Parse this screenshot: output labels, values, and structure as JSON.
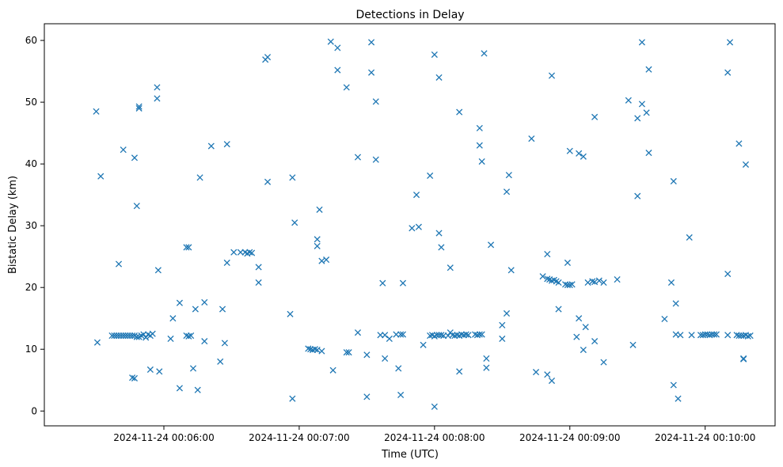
{
  "chart_data": {
    "type": "scatter",
    "title": "Detections in Delay",
    "xlabel": "Time (UTC)",
    "ylabel": "Bistatic Delay (km)",
    "x_unit": "seconds after 2024-11-24 00:05:00",
    "x_ticks": [
      {
        "label": "2024-11-24 00:06:00",
        "value": 60
      },
      {
        "label": "2024-11-24 00:07:00",
        "value": 120
      },
      {
        "label": "2024-11-24 00:08:00",
        "value": 180
      },
      {
        "label": "2024-11-24 00:09:00",
        "value": 240
      },
      {
        "label": "2024-11-24 00:10:00",
        "value": 300
      }
    ],
    "y_ticks": [
      0,
      10,
      20,
      30,
      40,
      50,
      60
    ],
    "xlim": [
      7,
      331
    ],
    "ylim": [
      -2.4,
      62.7
    ],
    "marker": "x",
    "color": "#1f77b4",
    "grid": false,
    "points": [
      [
        30,
        48.5
      ],
      [
        30.5,
        11.1
      ],
      [
        32,
        38
      ],
      [
        40,
        23.8
      ],
      [
        42,
        42.3
      ],
      [
        37,
        12.2
      ],
      [
        38,
        12.2
      ],
      [
        39,
        12.2
      ],
      [
        40,
        12.2
      ],
      [
        41,
        12.2
      ],
      [
        42,
        12.2
      ],
      [
        43,
        12.2
      ],
      [
        44,
        12.2
      ],
      [
        45,
        12.2
      ],
      [
        46,
        12.2
      ],
      [
        47,
        12.2
      ],
      [
        48,
        12.0
      ],
      [
        49,
        12.0
      ],
      [
        50,
        12.2
      ],
      [
        51,
        12.4
      ],
      [
        52,
        11.9
      ],
      [
        53,
        12.4
      ],
      [
        54,
        12.2
      ],
      [
        55,
        12.5
      ],
      [
        46,
        5.4
      ],
      [
        47,
        5.3
      ],
      [
        47,
        41
      ],
      [
        48,
        33.2
      ],
      [
        49,
        49
      ],
      [
        49,
        49.3
      ],
      [
        54,
        6.7
      ],
      [
        57,
        52.4
      ],
      [
        57,
        50.6
      ],
      [
        57.5,
        22.8
      ],
      [
        58,
        6.4
      ],
      [
        64,
        15
      ],
      [
        63,
        11.7
      ],
      [
        67,
        3.7
      ],
      [
        67,
        17.5
      ],
      [
        70,
        26.5
      ],
      [
        71,
        26.5
      ],
      [
        70,
        12.2
      ],
      [
        71,
        12.1
      ],
      [
        72,
        12.2
      ],
      [
        73,
        6.9
      ],
      [
        74,
        16.5
      ],
      [
        75,
        3.4
      ],
      [
        76,
        37.8
      ],
      [
        78,
        17.6
      ],
      [
        78,
        11.3
      ],
      [
        81,
        42.9
      ],
      [
        85,
        8
      ],
      [
        86,
        16.5
      ],
      [
        87,
        11
      ],
      [
        88,
        24
      ],
      [
        88,
        43.2
      ],
      [
        91,
        25.7
      ],
      [
        94,
        25.7
      ],
      [
        96,
        25.7
      ],
      [
        97,
        25.5
      ],
      [
        98,
        25.7
      ],
      [
        99,
        25.6
      ],
      [
        102,
        23.3
      ],
      [
        102,
        20.8
      ],
      [
        105,
        56.9
      ],
      [
        106,
        57.3
      ],
      [
        106,
        37.1
      ],
      [
        116,
        15.7
      ],
      [
        117,
        37.8
      ],
      [
        117,
        2
      ],
      [
        118,
        30.5
      ],
      [
        124,
        10.1
      ],
      [
        125,
        10.0
      ],
      [
        126,
        9.9
      ],
      [
        127,
        10
      ],
      [
        128,
        9.9
      ],
      [
        130,
        9.7
      ],
      [
        128,
        27.8
      ],
      [
        128,
        26.7
      ],
      [
        129,
        32.6
      ],
      [
        130,
        24.3
      ],
      [
        132,
        24.5
      ],
      [
        134,
        59.8
      ],
      [
        135,
        6.6
      ],
      [
        137,
        58.8
      ],
      [
        137,
        55.2
      ],
      [
        141,
        52.4
      ],
      [
        141,
        9.5
      ],
      [
        142,
        9.5
      ],
      [
        146,
        41.1
      ],
      [
        146,
        12.7
      ],
      [
        150,
        2.3
      ],
      [
        150,
        9.1
      ],
      [
        152,
        54.8
      ],
      [
        152,
        59.7
      ],
      [
        154,
        50.1
      ],
      [
        154,
        40.7
      ],
      [
        156,
        12.3
      ],
      [
        157,
        20.7
      ],
      [
        158,
        8.5
      ],
      [
        158,
        12.3
      ],
      [
        160,
        11.7
      ],
      [
        163,
        12.4
      ],
      [
        164,
        6.9
      ],
      [
        165,
        2.6
      ],
      [
        165,
        12.4
      ],
      [
        166,
        20.7
      ],
      [
        166,
        12.4
      ],
      [
        170,
        29.6
      ],
      [
        172,
        35
      ],
      [
        173,
        29.8
      ],
      [
        175,
        10.7
      ],
      [
        178,
        38.1
      ],
      [
        178,
        12.2
      ],
      [
        179,
        12.3
      ],
      [
        180,
        12.1
      ],
      [
        181,
        12.3
      ],
      [
        182,
        12.3
      ],
      [
        183,
        12.3
      ],
      [
        184,
        12.2
      ],
      [
        186,
        12.2
      ],
      [
        187,
        12.7
      ],
      [
        188,
        12.3
      ],
      [
        189,
        12.2
      ],
      [
        190,
        12.3
      ],
      [
        191,
        12.2
      ],
      [
        192,
        12.4
      ],
      [
        193,
        12.3
      ],
      [
        194,
        12.4
      ],
      [
        195,
        12.3
      ],
      [
        198,
        12.4
      ],
      [
        199,
        12.3
      ],
      [
        200,
        12.4
      ],
      [
        201,
        12.4
      ],
      [
        180,
        0.7
      ],
      [
        180,
        57.7
      ],
      [
        182,
        54
      ],
      [
        182,
        28.8
      ],
      [
        183,
        26.5
      ],
      [
        187,
        23.2
      ],
      [
        191,
        48.4
      ],
      [
        191,
        6.4
      ],
      [
        200,
        45.8
      ],
      [
        200,
        43
      ],
      [
        201,
        40.4
      ],
      [
        202,
        57.9
      ],
      [
        203,
        7
      ],
      [
        203,
        8.5
      ],
      [
        205,
        26.9
      ],
      [
        210,
        13.9
      ],
      [
        210,
        11.7
      ],
      [
        212,
        15.8
      ],
      [
        212,
        35.5
      ],
      [
        213,
        38.2
      ],
      [
        214,
        22.8
      ],
      [
        223,
        44.1
      ],
      [
        225,
        6.3
      ],
      [
        228,
        21.8
      ],
      [
        230,
        25.4
      ],
      [
        230,
        21.4
      ],
      [
        231,
        21.3
      ],
      [
        232,
        21.1
      ],
      [
        233,
        21.2
      ],
      [
        234,
        21.0
      ],
      [
        230,
        5.9
      ],
      [
        232,
        54.3
      ],
      [
        232,
        4.9
      ],
      [
        235,
        16.5
      ],
      [
        235,
        20.8
      ],
      [
        238,
        20.5
      ],
      [
        239,
        20.4
      ],
      [
        240,
        20.4
      ],
      [
        241,
        20.5
      ],
      [
        239,
        24
      ],
      [
        240,
        42.1
      ],
      [
        243,
        12
      ],
      [
        244,
        15
      ],
      [
        244,
        41.7
      ],
      [
        246,
        9.9
      ],
      [
        246,
        41.2
      ],
      [
        247,
        13.6
      ],
      [
        248,
        20.8
      ],
      [
        250,
        21
      ],
      [
        251,
        20.9
      ],
      [
        251,
        47.6
      ],
      [
        251,
        11.3
      ],
      [
        253,
        21.1
      ],
      [
        255,
        20.8
      ],
      [
        255,
        7.9
      ],
      [
        261,
        21.3
      ],
      [
        266,
        50.3
      ],
      [
        268,
        10.7
      ],
      [
        270,
        47.4
      ],
      [
        270,
        34.8
      ],
      [
        272,
        49.7
      ],
      [
        272,
        59.7
      ],
      [
        274,
        48.3
      ],
      [
        275,
        55.3
      ],
      [
        275,
        41.8
      ],
      [
        282,
        14.9
      ],
      [
        285,
        20.8
      ],
      [
        286,
        4.2
      ],
      [
        287,
        12.4
      ],
      [
        286,
        37.2
      ],
      [
        287,
        17.4
      ],
      [
        288,
        2
      ],
      [
        289,
        12.3
      ],
      [
        293,
        28.1
      ],
      [
        294,
        12.3
      ],
      [
        298,
        12.3
      ],
      [
        299,
        12.3
      ],
      [
        300,
        12.4
      ],
      [
        301,
        12.4
      ],
      [
        302,
        12.3
      ],
      [
        303,
        12.4
      ],
      [
        304,
        12.4
      ],
      [
        305,
        12.4
      ],
      [
        310,
        12.3
      ],
      [
        314,
        12.3
      ],
      [
        315,
        12.2
      ],
      [
        316,
        12.2
      ],
      [
        317,
        12.2
      ],
      [
        318,
        12.3
      ],
      [
        319,
        12.1
      ],
      [
        320,
        12.2
      ],
      [
        310,
        54.8
      ],
      [
        310,
        22.2
      ],
      [
        311,
        59.7
      ],
      [
        315,
        43.3
      ],
      [
        317,
        8.4
      ],
      [
        317,
        8.5
      ],
      [
        318,
        39.9
      ]
    ]
  }
}
